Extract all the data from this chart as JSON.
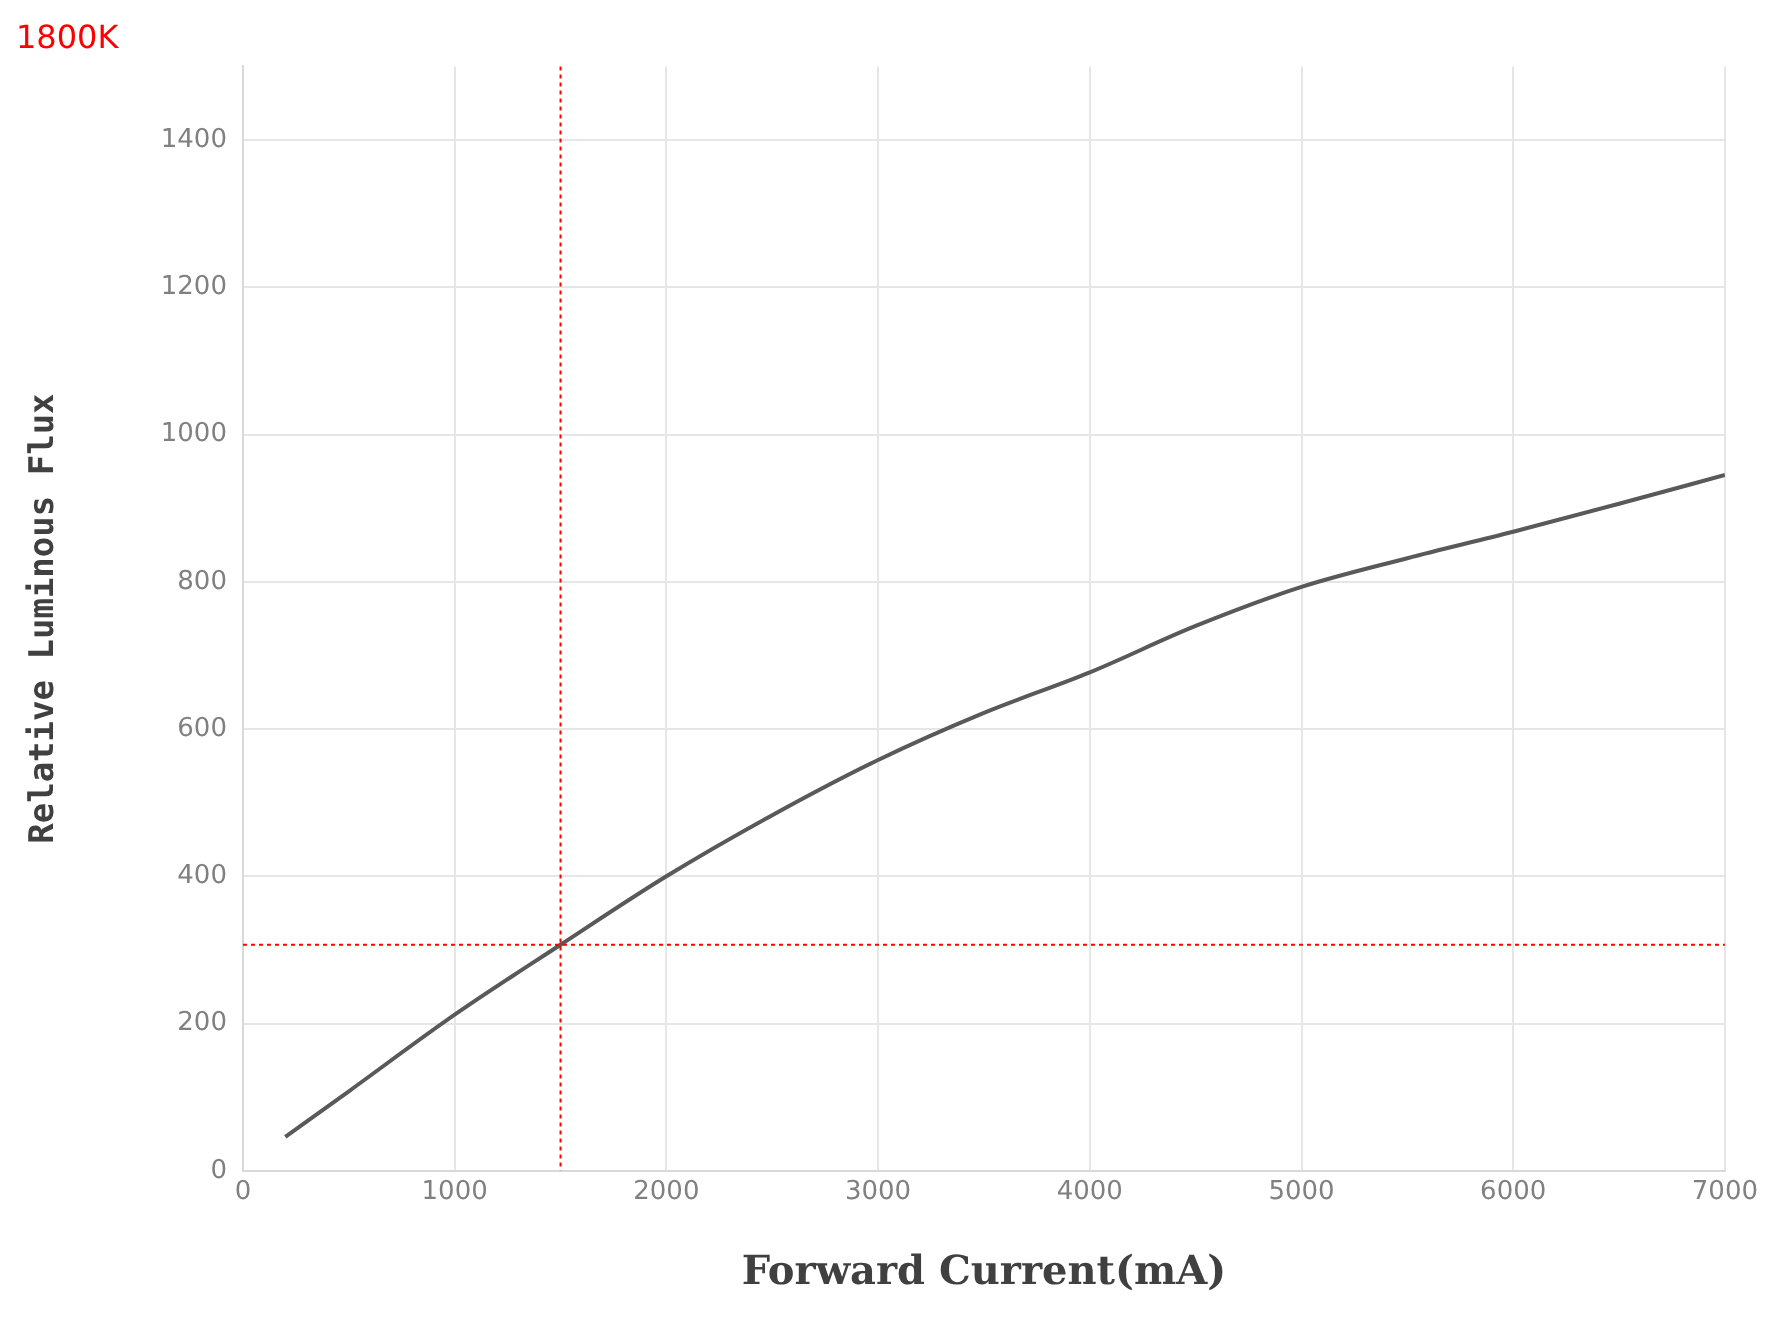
{
  "chart_data": {
    "type": "line",
    "title": "1800K",
    "xlabel": "Forward Current(mA)",
    "ylabel": "Relative Luminous Flux",
    "x": [
      200,
      500,
      1000,
      1500,
      2000,
      2500,
      3000,
      3500,
      4000,
      4500,
      5000,
      5500,
      6000,
      6500,
      7000
    ],
    "series": [
      {
        "color": "#595959",
        "values": [
          46,
          108,
          212,
          307,
          400,
          483,
          558,
          622,
          677,
          740,
          793,
          832,
          868,
          906,
          945
        ]
      }
    ],
    "xlim": [
      0,
      7000
    ],
    "xticks": [
      0,
      1000,
      2000,
      3000,
      4000,
      5000,
      6000,
      7000
    ],
    "ylim": [
      0,
      1500
    ],
    "yticks": [
      0,
      200,
      400,
      600,
      800,
      1000,
      1200,
      1400
    ],
    "ref_lines": [
      {
        "axis": "x",
        "value": 1500,
        "color": "#ff0000",
        "line_style": "dotted"
      },
      {
        "axis": "y",
        "value": 307,
        "color": "#ff0000",
        "line_style": "dotted"
      }
    ],
    "grid": true,
    "legend": false,
    "marker": "none",
    "line_style": "solid"
  }
}
